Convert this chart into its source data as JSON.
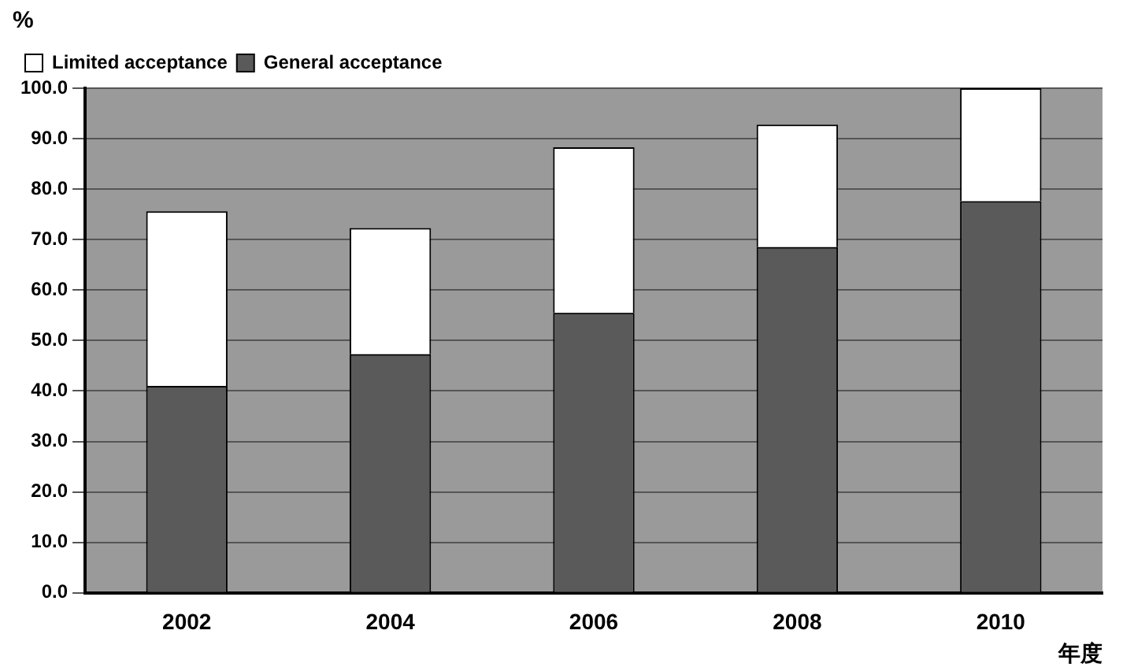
{
  "chart_data": {
    "type": "bar",
    "stacked": true,
    "ylabel": "%",
    "xlabel": "年度",
    "categories": [
      "2002",
      "2004",
      "2006",
      "2008",
      "2010"
    ],
    "series": [
      {
        "name": "General acceptance",
        "color": "#5a5a5a",
        "values": [
          41,
          47.3,
          55.5,
          68.5,
          77.6
        ]
      },
      {
        "name": "Limited acceptance",
        "color": "#ffffff",
        "values": [
          34.6,
          25,
          32.8,
          24.3,
          22.4
        ]
      }
    ],
    "ylim": [
      0,
      100
    ],
    "yticks": [
      {
        "value": 0,
        "label": "0.0"
      },
      {
        "value": 10,
        "label": "10.0"
      },
      {
        "value": 20,
        "label": "20.0"
      },
      {
        "value": 30,
        "label": "30.0"
      },
      {
        "value": 40,
        "label": "40.0"
      },
      {
        "value": 50,
        "label": "50.0"
      },
      {
        "value": 60,
        "label": "60.0"
      },
      {
        "value": 70,
        "label": "70.0"
      },
      {
        "value": 80,
        "label": "80.0"
      },
      {
        "value": 90,
        "label": "90.0"
      },
      {
        "value": 100,
        "label": "100.0"
      }
    ],
    "grid": "y",
    "legend": "top left"
  }
}
